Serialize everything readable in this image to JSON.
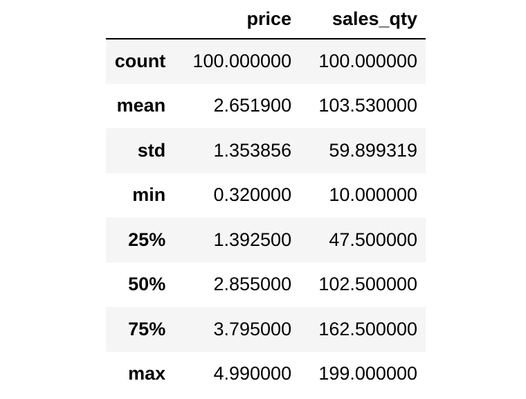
{
  "table": {
    "index_header": "",
    "columns": [
      "price",
      "sales_qty"
    ],
    "rows": [
      {
        "label": "count",
        "values": [
          "100.000000",
          "100.000000"
        ]
      },
      {
        "label": "mean",
        "values": [
          "2.651900",
          "103.530000"
        ]
      },
      {
        "label": "std",
        "values": [
          "1.353856",
          "59.899319"
        ]
      },
      {
        "label": "min",
        "values": [
          "0.320000",
          "10.000000"
        ]
      },
      {
        "label": "25%",
        "values": [
          "1.392500",
          "47.500000"
        ]
      },
      {
        "label": "50%",
        "values": [
          "2.855000",
          "102.500000"
        ]
      },
      {
        "label": "75%",
        "values": [
          "3.795000",
          "162.500000"
        ]
      },
      {
        "label": "max",
        "values": [
          "4.990000",
          "199.000000"
        ]
      }
    ]
  },
  "colors": {
    "stripe": "#f5f5f5",
    "background": "#ffffff",
    "header_rule": "#000000"
  }
}
